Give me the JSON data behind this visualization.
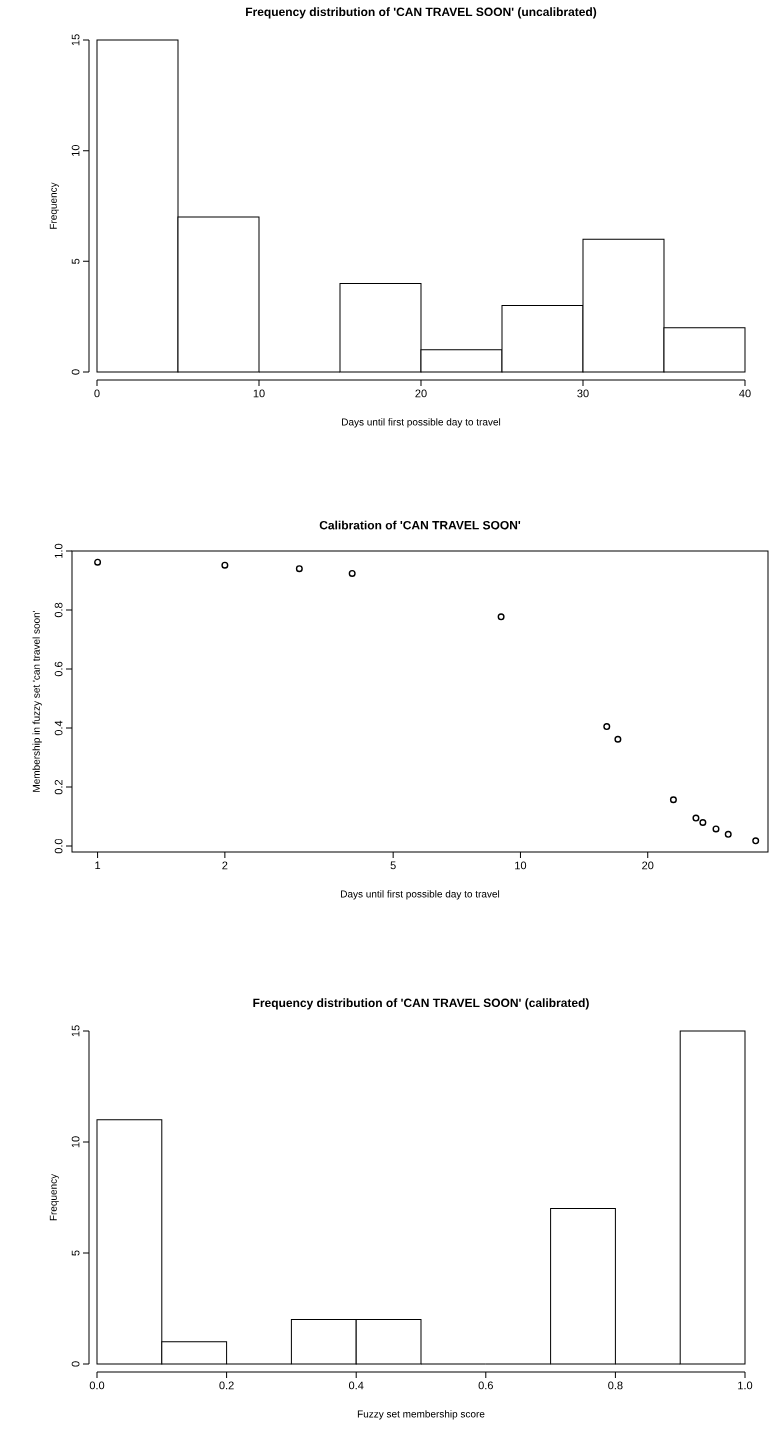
{
  "chart_data": [
    {
      "type": "histogram",
      "title": "Frequency distribution of 'CAN TRAVEL SOON' (uncalibrated)",
      "xlabel": "Days until first possible day to travel",
      "ylabel": "Frequency",
      "bins": [
        0,
        5,
        10,
        15,
        20,
        25,
        30,
        35,
        40
      ],
      "values": [
        15,
        7,
        0,
        4,
        1,
        3,
        6,
        2
      ],
      "xlim": [
        0,
        40
      ],
      "ylim": [
        0,
        15
      ],
      "xticks": [
        0,
        10,
        20,
        30,
        40
      ],
      "yticks": [
        0,
        5,
        10,
        15
      ]
    },
    {
      "type": "scatter",
      "title": "Calibration of 'CAN TRAVEL SOON'",
      "xlabel": "Days until first possible day to travel",
      "ylabel": "Membership in fuzzy set 'can travel soon'",
      "x": [
        1,
        2,
        3,
        4,
        9,
        16,
        17,
        23,
        26,
        27,
        29,
        31,
        36
      ],
      "values": [
        0.962,
        0.952,
        0.94,
        0.924,
        0.777,
        0.405,
        0.362,
        0.157,
        0.095,
        0.08,
        0.058,
        0.04,
        0.018
      ],
      "log": "x",
      "marker": "circle",
      "color": "#000000",
      "xlim": [
        0.87,
        38.5
      ],
      "ylim": [
        -0.02,
        1.0
      ],
      "xticks": [
        1,
        2,
        5,
        10,
        20
      ],
      "yticks": [
        {
          "value": 0,
          "label": "0.0"
        },
        {
          "value": 0.2,
          "label": "0.2"
        },
        {
          "value": 0.4,
          "label": "0.4"
        },
        {
          "value": 0.6,
          "label": "0.6"
        },
        {
          "value": 0.8,
          "label": "0.8"
        },
        {
          "value": 1,
          "label": "1.0"
        }
      ]
    },
    {
      "type": "histogram",
      "title": "Frequency distribution of 'CAN TRAVEL SOON' (calibrated)",
      "xlabel": "Fuzzy set membership score",
      "ylabel": "Frequency",
      "bins": [
        0,
        0.1,
        0.2,
        0.3,
        0.4,
        0.5,
        0.6,
        0.7,
        0.8,
        0.9,
        1.0
      ],
      "values": [
        11,
        1,
        0,
        2,
        2,
        0,
        0,
        7,
        0,
        15
      ],
      "xlim": [
        0,
        1
      ],
      "ylim": [
        0,
        15
      ],
      "xticks": [
        {
          "value": 0,
          "label": "0.0"
        },
        {
          "value": 0.2,
          "label": "0.2"
        },
        {
          "value": 0.4,
          "label": "0.4"
        },
        {
          "value": 0.6,
          "label": "0.6"
        },
        {
          "value": 0.8,
          "label": "0.8"
        },
        {
          "value": 1,
          "label": "1.0"
        }
      ],
      "yticks": [
        0,
        5,
        10,
        15
      ]
    }
  ]
}
